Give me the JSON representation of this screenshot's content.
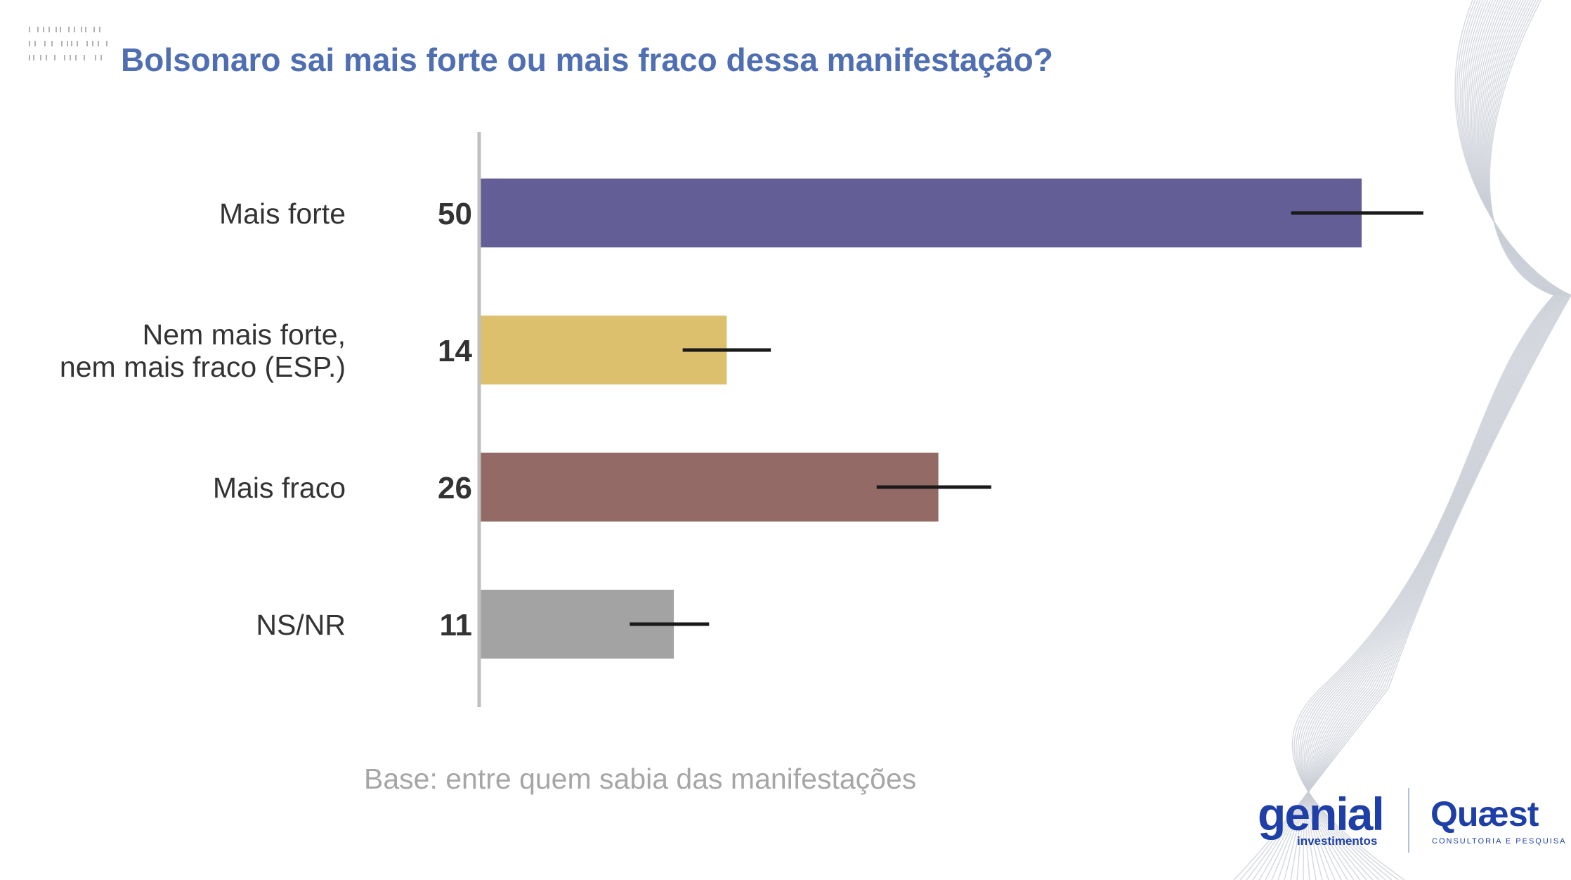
{
  "title": "Bolsonaro sai mais forte ou mais fraco dessa manifestação?",
  "base_note": "Base: entre quem sabia das manifestações",
  "logos": {
    "genial": "genial",
    "genial_sub": "investimentos",
    "quaest": "Quæst",
    "quaest_sub": "CONSULTORIA E PESQUISA"
  },
  "colors": {
    "title": "#4f6fb2",
    "axis": "#bfbfbf",
    "error_bar": "#1a1a1a"
  },
  "chart_data": {
    "type": "bar",
    "orientation": "horizontal",
    "title": "Bolsonaro sai mais forte ou mais fraco dessa manifestação?",
    "xlabel": "",
    "ylabel": "",
    "xlim": [
      0,
      60
    ],
    "grid": false,
    "categories": [
      [
        "Mais forte"
      ],
      [
        "Nem mais forte,",
        "nem mais fraco (ESP.)"
      ],
      [
        "Mais fraco"
      ],
      [
        "NS/NR"
      ]
    ],
    "values": [
      50,
      14,
      26,
      11
    ],
    "value_labels": [
      "50",
      "14",
      "26",
      "11"
    ],
    "colors": [
      "#635e95",
      "#dcc06e",
      "#936a65",
      "#a3a3a3"
    ],
    "error_bars": [
      [
        46,
        53.5
      ],
      [
        11.5,
        16.5
      ],
      [
        22.5,
        29
      ],
      [
        8.5,
        13
      ]
    ]
  }
}
